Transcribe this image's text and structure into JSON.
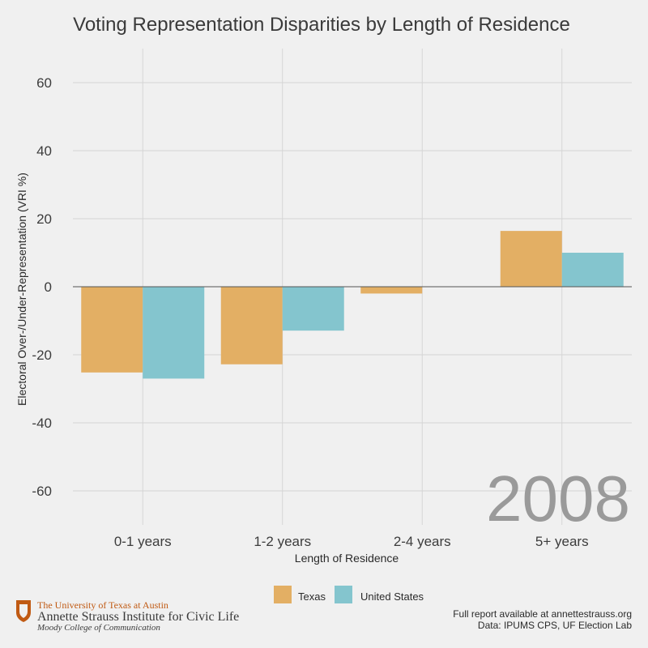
{
  "chart_data": {
    "type": "bar",
    "title": "Voting Representation Disparities by Length of Residence",
    "xlabel": "Length of Residence",
    "ylabel": "Electoral Over-/Under-Representation (VRI %)",
    "categories": [
      "0-1 years",
      "1-2 years",
      "2-4 years",
      "5+ years"
    ],
    "series": [
      {
        "name": "Texas",
        "color": "#e3af64",
        "values": [
          -25.2,
          -22.8,
          -2.0,
          16.4
        ]
      },
      {
        "name": "United States",
        "color": "#84c5ce",
        "values": [
          -27.0,
          -12.9,
          0,
          10.0
        ]
      }
    ],
    "ylim": [
      -70,
      70
    ],
    "yticks": [
      -60,
      -40,
      -20,
      0,
      20,
      40,
      60
    ],
    "grid": true,
    "legend_position": "bottom",
    "annotation": "2008"
  },
  "footer": {
    "logo": {
      "line1": "The University of Texas at Austin",
      "line2": "Annette Strauss Institute for Civic Life",
      "line3": "Moody College of Communication",
      "icon": "ut-shield-icon"
    },
    "note1": "Full report available at annettestrauss.org",
    "note2": "Data: IPUMS CPS, UF Election Lab"
  },
  "colors": {
    "background": "#f0f0f0",
    "grid": "#d5d5d5",
    "texas": "#e3af64",
    "us": "#84c5ce"
  }
}
